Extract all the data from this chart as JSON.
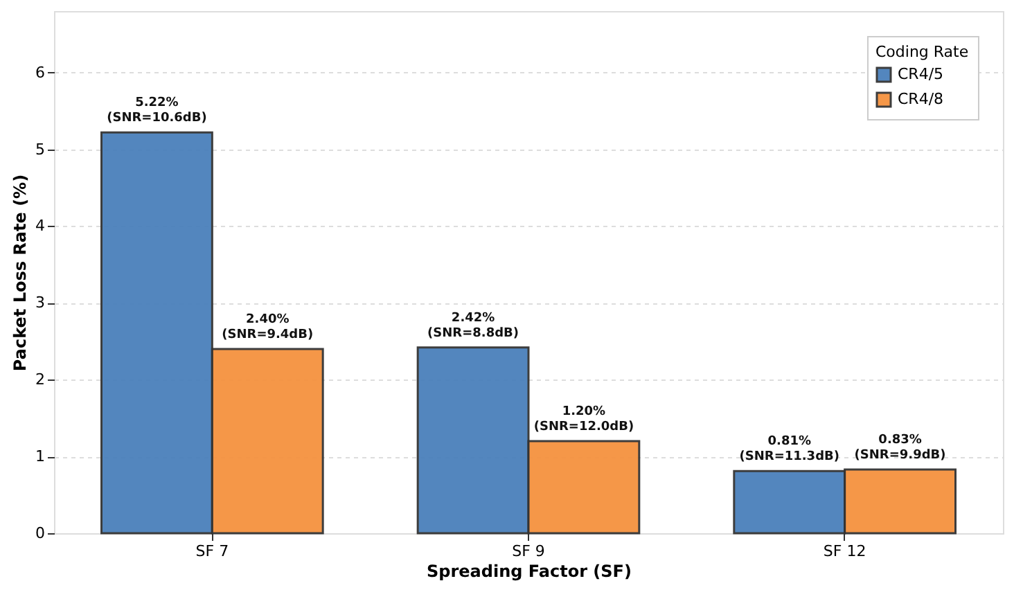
{
  "chart_data": {
    "type": "bar",
    "xlabel": "Spreading Factor (SF)",
    "ylabel": "Packet Loss Rate (%)",
    "legend_title": "Coding Rate",
    "categories": [
      "SF 7",
      "SF 9",
      "SF 12"
    ],
    "series": [
      {
        "name": "CR4/5",
        "color": "#4a80bb",
        "values": [
          5.22,
          2.42,
          0.81
        ],
        "value_labels": [
          "5.22%\n(SNR=10.6dB)",
          "2.42%\n(SNR=8.8dB)",
          "0.81%\n(SNR=11.3dB)"
        ]
      },
      {
        "name": "CR4/8",
        "color": "#f5923f",
        "values": [
          2.4,
          1.2,
          0.83
        ],
        "value_labels": [
          "2.40%\n(SNR=9.4dB)",
          "1.20%\n(SNR=12.0dB)",
          "0.83%\n(SNR=9.9dB)"
        ]
      }
    ],
    "ylim": [
      0,
      6.8
    ],
    "yticks": [
      0,
      1,
      2,
      3,
      4,
      5,
      6
    ],
    "grid": "y",
    "legend": "top right"
  }
}
